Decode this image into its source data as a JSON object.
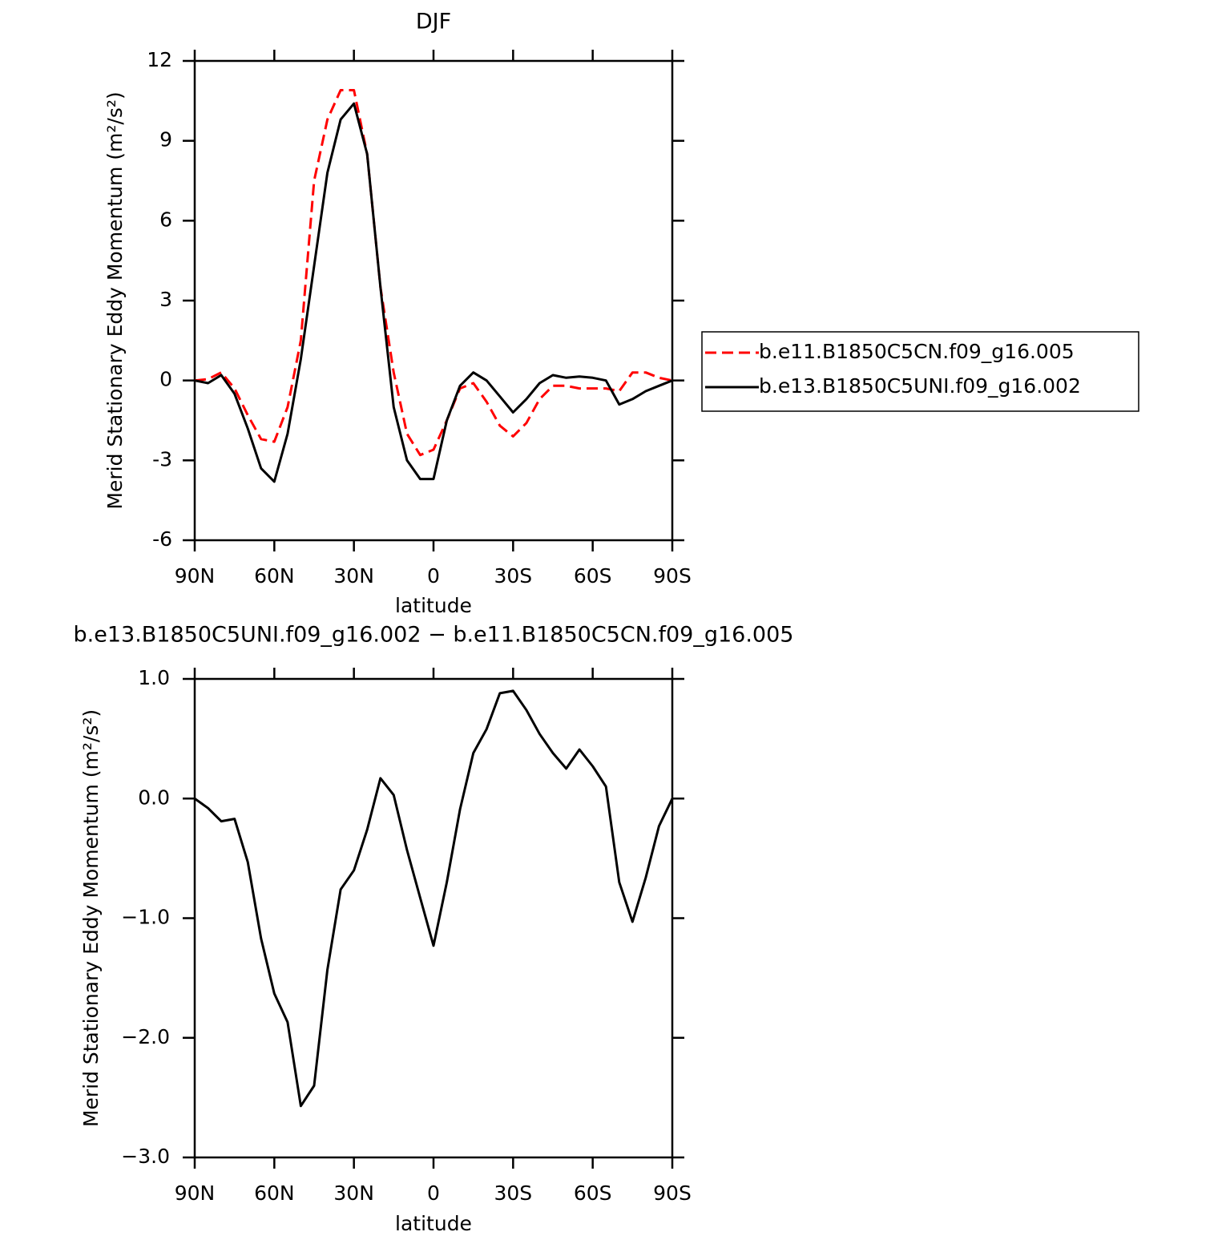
{
  "chart_data": [
    {
      "type": "line",
      "title": "DJF",
      "xlabel": "latitude",
      "ylabel": "Merid Stationary Eddy Momentum (m²/s²)",
      "x": [
        90,
        85,
        80,
        75,
        70,
        65,
        60,
        55,
        50,
        45,
        40,
        35,
        30,
        25,
        20,
        15,
        10,
        5,
        0,
        -5,
        -10,
        -15,
        -20,
        -25,
        -30,
        -35,
        -40,
        -45,
        -50,
        -55,
        -60,
        -65,
        -70,
        -75,
        -80,
        -85,
        -90
      ],
      "series": [
        {
          "name": "b.e11.B1850C5CN.f09_g16.005",
          "color": "#ff0000",
          "dash": true,
          "values": [
            0,
            0.05,
            0.3,
            -0.3,
            -1.3,
            -2.2,
            -2.3,
            -1.0,
            1.5,
            7.5,
            9.8,
            10.9,
            10.9,
            8.5,
            3.5,
            0.3,
            -2.0,
            -2.8,
            -2.6,
            -1.5,
            -0.3,
            -0.1,
            -0.8,
            -1.7,
            -2.1,
            -1.6,
            -0.7,
            -0.2,
            -0.2,
            -0.3,
            -0.3,
            -0.3,
            -0.4,
            0.3,
            0.3,
            0.1,
            0
          ]
        },
        {
          "name": "b.e13.B1850C5UNI.f09_g16.002",
          "color": "#000000",
          "dash": false,
          "values": [
            0,
            -0.1,
            0.2,
            -0.5,
            -1.8,
            -3.3,
            -3.8,
            -2.0,
            0.8,
            4.3,
            7.8,
            9.8,
            10.4,
            8.5,
            3.5,
            -1.0,
            -3.0,
            -3.7,
            -3.7,
            -1.5,
            -0.2,
            0.3,
            0,
            -0.6,
            -1.2,
            -0.7,
            -0.1,
            0.2,
            0.1,
            0.15,
            0.1,
            0,
            -0.9,
            -0.7,
            -0.4,
            -0.2,
            0
          ]
        }
      ],
      "xlim": [
        90,
        -90
      ],
      "xticks": [
        {
          "value": 90,
          "label": "90N"
        },
        {
          "value": 60,
          "label": "60N"
        },
        {
          "value": 30,
          "label": "30N"
        },
        0,
        {
          "value": -30,
          "label": "30S"
        },
        {
          "value": -60,
          "label": "60S"
        },
        {
          "value": -90,
          "label": "90S"
        }
      ],
      "ylim": [
        -6,
        12
      ],
      "yticks": [
        -6,
        -3,
        0,
        3,
        6,
        9,
        12
      ],
      "legend": "right"
    },
    {
      "type": "line",
      "title": "b.e13.B1850C5UNI.f09_g16.002 − b.e11.B1850C5CN.f09_g16.005",
      "xlabel": "latitude",
      "ylabel": "Merid Stationary Eddy Momentum (m²/s²)",
      "x": [
        90,
        85,
        80,
        75,
        70,
        65,
        60,
        55,
        50,
        45,
        40,
        35,
        30,
        25,
        20,
        15,
        10,
        5,
        0,
        -5,
        -10,
        -15,
        -20,
        -25,
        -30,
        -35,
        -40,
        -45,
        -50,
        -55,
        -60,
        -65,
        -70,
        -75,
        -80,
        -85,
        -90
      ],
      "series": [
        {
          "color": "#000000",
          "dash": false,
          "values": [
            0,
            -0.08,
            -0.19,
            -0.17,
            -0.53,
            -1.17,
            -1.63,
            -1.87,
            -2.57,
            -2.4,
            -1.43,
            -0.76,
            -0.6,
            -0.26,
            0.17,
            0.03,
            -0.43,
            -0.83,
            -1.23,
            -0.7,
            -0.09,
            0.38,
            0.58,
            0.88,
            0.9,
            0.74,
            0.54,
            0.38,
            0.25,
            0.41,
            0.27,
            0.1,
            -0.7,
            -1.03,
            -0.66,
            -0.23,
            0
          ]
        }
      ],
      "xlim": [
        90,
        -90
      ],
      "xticks": [
        {
          "value": 90,
          "label": "90N"
        },
        {
          "value": 60,
          "label": "60N"
        },
        {
          "value": 30,
          "label": "30N"
        },
        0,
        {
          "value": -30,
          "label": "30S"
        },
        {
          "value": -60,
          "label": "60S"
        },
        {
          "value": -90,
          "label": "90S"
        }
      ],
      "ylim": [
        -3,
        1
      ],
      "yticks": [
        {
          "value": -3,
          "label": "−3.0"
        },
        {
          "value": -2,
          "label": "−2.0"
        },
        {
          "value": -1,
          "label": "−1.0"
        },
        {
          "value": 0,
          "label": "0.0"
        },
        {
          "value": 1,
          "label": "1.0"
        }
      ]
    }
  ]
}
